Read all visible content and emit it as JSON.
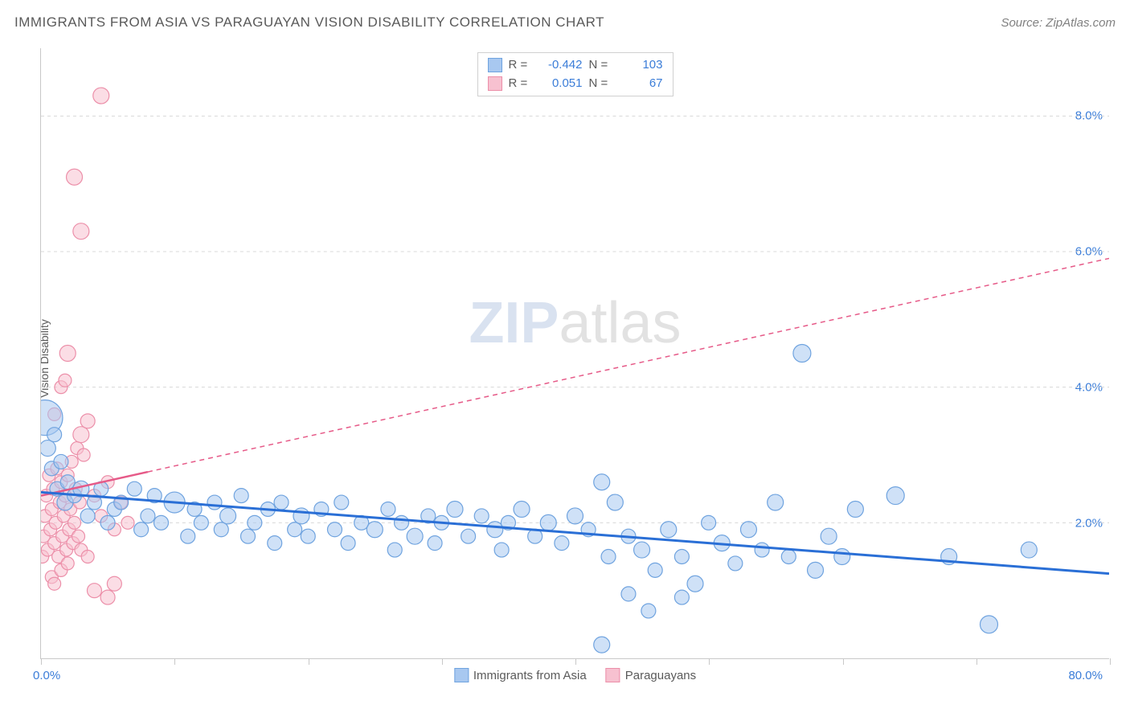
{
  "title": "IMMIGRANTS FROM ASIA VS PARAGUAYAN VISION DISABILITY CORRELATION CHART",
  "source": "Source: ZipAtlas.com",
  "ylabel": "Vision Disability",
  "watermark": {
    "zip": "ZIP",
    "atlas": "atlas"
  },
  "chart": {
    "type": "scatter",
    "xlim": [
      0,
      80
    ],
    "ylim": [
      0,
      9
    ],
    "yticks": [
      2,
      4,
      6,
      8
    ],
    "ytick_labels": [
      "2.0%",
      "4.0%",
      "6.0%",
      "8.0%"
    ],
    "xtick_positions": [
      0,
      10,
      20,
      30,
      40,
      50,
      60,
      70,
      80
    ],
    "x_min_label": "0.0%",
    "x_max_label": "80.0%",
    "grid_color": "#d8d8d8",
    "axis_color": "#c8c8c8",
    "background_color": "#ffffff",
    "label_fontsize": 14,
    "tick_fontsize": 15,
    "tick_color": "#3b7dd8"
  },
  "series": {
    "blue": {
      "label": "Immigrants from Asia",
      "fill": "#a8c8f0",
      "stroke": "#6fa3df",
      "fill_opacity": 0.55,
      "R": "-0.442",
      "N": "103",
      "regression": {
        "x1": 0,
        "y1": 2.45,
        "x2": 80,
        "y2": 1.25,
        "color": "#2a6fd6",
        "width": 3,
        "dash": "none"
      },
      "points": [
        [
          0.3,
          3.55,
          22
        ],
        [
          0.5,
          3.1,
          10
        ],
        [
          0.8,
          2.8,
          9
        ],
        [
          1.0,
          3.3,
          9
        ],
        [
          1.2,
          2.5,
          9
        ],
        [
          1.5,
          2.9,
          9
        ],
        [
          1.8,
          2.3,
          10
        ],
        [
          2.0,
          2.6,
          9
        ],
        [
          2.5,
          2.4,
          9
        ],
        [
          3.0,
          2.5,
          10
        ],
        [
          3.5,
          2.1,
          9
        ],
        [
          4.0,
          2.3,
          9
        ],
        [
          4.5,
          2.5,
          9
        ],
        [
          5,
          2.0,
          9
        ],
        [
          5.5,
          2.2,
          9
        ],
        [
          6,
          2.3,
          9
        ],
        [
          7,
          2.5,
          9
        ],
        [
          7.5,
          1.9,
          9
        ],
        [
          8,
          2.1,
          9
        ],
        [
          8.5,
          2.4,
          9
        ],
        [
          9,
          2.0,
          9
        ],
        [
          10,
          2.3,
          13
        ],
        [
          11,
          1.8,
          9
        ],
        [
          11.5,
          2.2,
          9
        ],
        [
          12,
          2.0,
          9
        ],
        [
          13,
          2.3,
          9
        ],
        [
          13.5,
          1.9,
          9
        ],
        [
          14,
          2.1,
          10
        ],
        [
          15,
          2.4,
          9
        ],
        [
          15.5,
          1.8,
          9
        ],
        [
          16,
          2.0,
          9
        ],
        [
          17,
          2.2,
          9
        ],
        [
          17.5,
          1.7,
          9
        ],
        [
          18,
          2.3,
          9
        ],
        [
          19,
          1.9,
          9
        ],
        [
          19.5,
          2.1,
          10
        ],
        [
          20,
          1.8,
          9
        ],
        [
          21,
          2.2,
          9
        ],
        [
          22,
          1.9,
          9
        ],
        [
          22.5,
          2.3,
          9
        ],
        [
          23,
          1.7,
          9
        ],
        [
          24,
          2.0,
          9
        ],
        [
          25,
          1.9,
          10
        ],
        [
          26,
          2.2,
          9
        ],
        [
          26.5,
          1.6,
          9
        ],
        [
          27,
          2.0,
          9
        ],
        [
          28,
          1.8,
          10
        ],
        [
          29,
          2.1,
          9
        ],
        [
          29.5,
          1.7,
          9
        ],
        [
          30,
          2.0,
          9
        ],
        [
          31,
          2.2,
          10
        ],
        [
          32,
          1.8,
          9
        ],
        [
          33,
          2.1,
          9
        ],
        [
          34,
          1.9,
          10
        ],
        [
          34.5,
          1.6,
          9
        ],
        [
          35,
          2.0,
          9
        ],
        [
          36,
          2.2,
          10
        ],
        [
          37,
          1.8,
          9
        ],
        [
          38,
          2.0,
          10
        ],
        [
          39,
          1.7,
          9
        ],
        [
          40,
          2.1,
          10
        ],
        [
          41,
          1.9,
          9
        ],
        [
          42,
          2.6,
          10
        ],
        [
          42.5,
          1.5,
          9
        ],
        [
          43,
          2.3,
          10
        ],
        [
          44,
          1.8,
          9
        ],
        [
          45,
          1.6,
          10
        ],
        [
          46,
          1.3,
          9
        ],
        [
          47,
          1.9,
          10
        ],
        [
          48,
          1.5,
          9
        ],
        [
          49,
          1.1,
          10
        ],
        [
          50,
          2.0,
          9
        ],
        [
          51,
          1.7,
          10
        ],
        [
          52,
          1.4,
          9
        ],
        [
          53,
          1.9,
          10
        ],
        [
          54,
          1.6,
          9
        ],
        [
          55,
          2.3,
          10
        ],
        [
          56,
          1.5,
          9
        ],
        [
          57,
          4.5,
          11
        ],
        [
          58,
          1.3,
          10
        ],
        [
          59,
          1.8,
          10
        ],
        [
          60,
          1.5,
          10
        ],
        [
          61,
          2.2,
          10
        ],
        [
          64,
          2.4,
          11
        ],
        [
          68,
          1.5,
          10
        ],
        [
          71,
          0.5,
          11
        ],
        [
          74,
          1.6,
          10
        ],
        [
          42,
          0.2,
          10
        ],
        [
          44,
          0.95,
          9
        ],
        [
          45.5,
          0.7,
          9
        ],
        [
          48,
          0.9,
          9
        ]
      ]
    },
    "pink": {
      "label": "Paraguayans",
      "fill": "#f7c1d0",
      "stroke": "#ec8fa9",
      "fill_opacity": 0.55,
      "R": "0.051",
      "N": "67",
      "regression": {
        "x1": 0,
        "y1": 2.4,
        "x2": 80,
        "y2": 5.9,
        "color": "#e65a88",
        "width": 1.5,
        "dash": "6,5",
        "solid_end_x": 8,
        "solid_end_y": 2.75
      },
      "points": [
        [
          0.1,
          1.5,
          8
        ],
        [
          0.2,
          1.8,
          8
        ],
        [
          0.3,
          2.1,
          8
        ],
        [
          0.4,
          2.4,
          8
        ],
        [
          0.5,
          1.6,
          8
        ],
        [
          0.6,
          2.7,
          8
        ],
        [
          0.7,
          1.9,
          8
        ],
        [
          0.8,
          2.2,
          8
        ],
        [
          0.9,
          2.5,
          8
        ],
        [
          1.0,
          1.7,
          8
        ],
        [
          1.1,
          2.0,
          8
        ],
        [
          1.2,
          2.8,
          8
        ],
        [
          1.3,
          1.5,
          8
        ],
        [
          1.4,
          2.3,
          8
        ],
        [
          1.5,
          2.6,
          8
        ],
        [
          1.6,
          1.8,
          8
        ],
        [
          1.7,
          2.1,
          8
        ],
        [
          1.8,
          2.4,
          8
        ],
        [
          1.9,
          1.6,
          8
        ],
        [
          2.0,
          2.7,
          8
        ],
        [
          2.1,
          1.9,
          8
        ],
        [
          2.2,
          2.2,
          8
        ],
        [
          2.3,
          2.9,
          8
        ],
        [
          2.4,
          1.7,
          8
        ],
        [
          2.5,
          2.0,
          8
        ],
        [
          2.6,
          2.5,
          8
        ],
        [
          2.7,
          3.1,
          8
        ],
        [
          2.8,
          1.8,
          8
        ],
        [
          2.9,
          2.3,
          8
        ],
        [
          3.0,
          3.3,
          10
        ],
        [
          3.2,
          3.0,
          8
        ],
        [
          1.0,
          3.6,
          8
        ],
        [
          1.5,
          4.0,
          8
        ],
        [
          1.8,
          4.1,
          8
        ],
        [
          2.0,
          4.5,
          10
        ],
        [
          0.8,
          1.2,
          8
        ],
        [
          1.0,
          1.1,
          8
        ],
        [
          1.5,
          1.3,
          8
        ],
        [
          2.0,
          1.4,
          8
        ],
        [
          3.0,
          1.6,
          8
        ],
        [
          3.5,
          1.5,
          8
        ],
        [
          4.0,
          2.4,
          8
        ],
        [
          4.5,
          2.1,
          8
        ],
        [
          5.0,
          2.6,
          8
        ],
        [
          5.5,
          1.9,
          8
        ],
        [
          6.0,
          2.3,
          8
        ],
        [
          6.5,
          2.0,
          8
        ],
        [
          4.0,
          1.0,
          9
        ],
        [
          5.0,
          0.9,
          9
        ],
        [
          5.5,
          1.1,
          9
        ],
        [
          3.5,
          3.5,
          9
        ],
        [
          3.0,
          6.3,
          10
        ],
        [
          2.5,
          7.1,
          10
        ],
        [
          4.5,
          8.3,
          10
        ]
      ]
    }
  },
  "legend_top": {
    "r_label": "R =",
    "n_label": "N ="
  }
}
